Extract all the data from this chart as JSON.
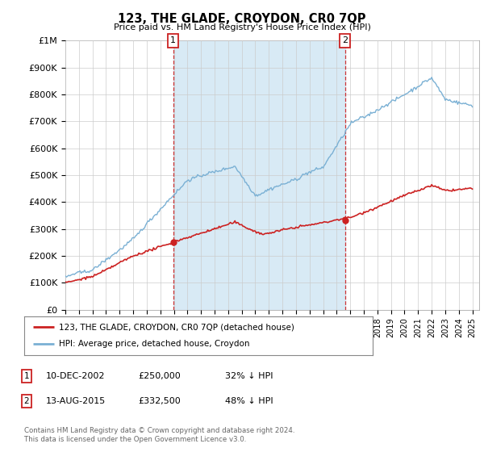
{
  "title": "123, THE GLADE, CROYDON, CR0 7QP",
  "subtitle": "Price paid vs. HM Land Registry's House Price Index (HPI)",
  "ylim": [
    0,
    1000000
  ],
  "yticks": [
    0,
    100000,
    200000,
    300000,
    400000,
    500000,
    600000,
    700000,
    800000,
    900000,
    1000000
  ],
  "ytick_labels": [
    "£0",
    "£100K",
    "£200K",
    "£300K",
    "£400K",
    "£500K",
    "£600K",
    "£700K",
    "£800K",
    "£900K",
    "£1M"
  ],
  "hpi_color": "#7ab0d4",
  "price_color": "#cc2222",
  "shade_color": "#d8eaf5",
  "sale1_x": 2002.94,
  "sale1_y": 250000,
  "sale2_x": 2015.62,
  "sale2_y": 332500,
  "legend_line1": "123, THE GLADE, CROYDON, CR0 7QP (detached house)",
  "legend_line2": "HPI: Average price, detached house, Croydon",
  "background_color": "#ffffff",
  "grid_color": "#cccccc",
  "xlim_left": 1995,
  "xlim_right": 2025.5
}
